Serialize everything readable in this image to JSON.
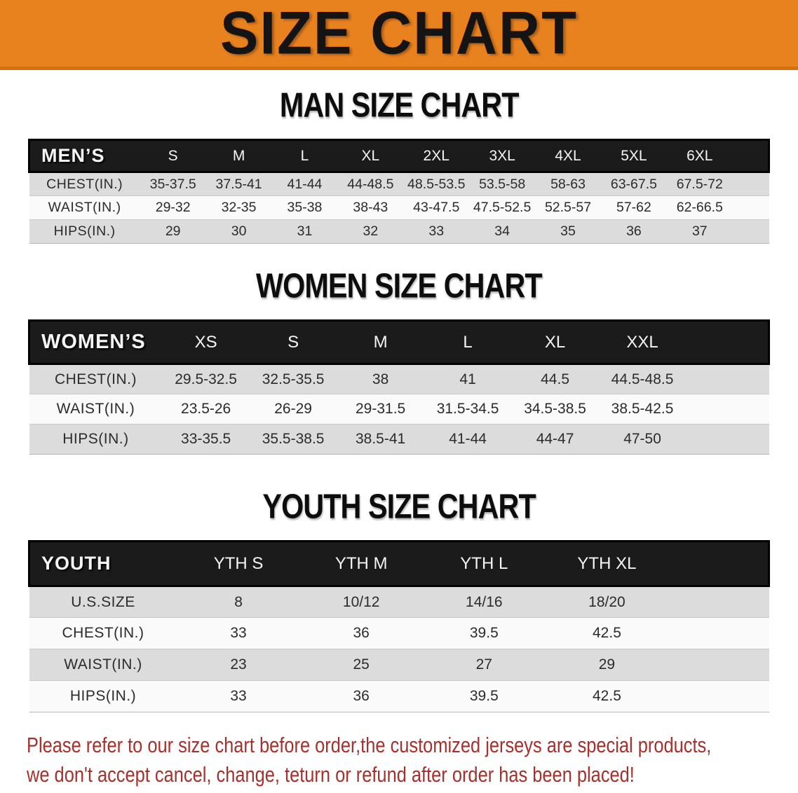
{
  "banner": {
    "title": "SIZE CHART",
    "bg_color": "#E8821E",
    "text_color": "#141414"
  },
  "sections": [
    {
      "title": "MAN SIZE CHART",
      "header_label": "MEN’S",
      "columns": [
        "S",
        "M",
        "L",
        "XL",
        "2XL",
        "3XL",
        "4XL",
        "5XL",
        "6XL"
      ],
      "rows": [
        {
          "label": "CHEST(IN.)",
          "values": [
            "35-37.5",
            "37.5-41",
            "41-44",
            "44-48.5",
            "48.5-53.5",
            "53.5-58",
            "58-63",
            "63-67.5",
            "67.5-72"
          ]
        },
        {
          "label": "WAIST(IN.)",
          "values": [
            "29-32",
            "32-35",
            "35-38",
            "38-43",
            "43-47.5",
            "47.5-52.5",
            "52.5-57",
            "57-62",
            "62-66.5"
          ]
        },
        {
          "label": "HIPS(IN.)",
          "values": [
            "29",
            "30",
            "31",
            "32",
            "33",
            "34",
            "35",
            "36",
            "37"
          ]
        }
      ]
    },
    {
      "title": "WOMEN SIZE CHART",
      "header_label": "WOMEN’S",
      "columns": [
        "XS",
        "S",
        "M",
        "L",
        "XL",
        "XXL"
      ],
      "rows": [
        {
          "label": "CHEST(IN.)",
          "values": [
            "29.5-32.5",
            "32.5-35.5",
            "38",
            "41",
            "44.5",
            "44.5-48.5"
          ]
        },
        {
          "label": "WAIST(IN.)",
          "values": [
            "23.5-26",
            "26-29",
            "29-31.5",
            "31.5-34.5",
            "34.5-38.5",
            "38.5-42.5"
          ]
        },
        {
          "label": "HIPS(IN.)",
          "values": [
            "33-35.5",
            "35.5-38.5",
            "38.5-41",
            "41-44",
            "44-47",
            "47-50"
          ]
        }
      ]
    },
    {
      "title": "YOUTH SIZE CHART",
      "header_label": "YOUTH",
      "columns": [
        "YTH S",
        "YTH M",
        "YTH L",
        "YTH XL"
      ],
      "rows": [
        {
          "label": "U.S.SIZE",
          "values": [
            "8",
            "10/12",
            "14/16",
            "18/20"
          ]
        },
        {
          "label": "CHEST(IN.)",
          "values": [
            "33",
            "36",
            "39.5",
            "42.5"
          ]
        },
        {
          "label": "WAIST(IN.)",
          "values": [
            "23",
            "25",
            "27",
            "29"
          ]
        },
        {
          "label": "HIPS(IN.)",
          "values": [
            "33",
            "36",
            "39.5",
            "42.5"
          ]
        }
      ]
    }
  ],
  "disclaimer": {
    "line1": "Please refer to our size chart before order,the customized jerseys are special products,",
    "line2": "we don't accept cancel, change, teturn or refund after order has been placed!",
    "color": "#A7302C"
  }
}
